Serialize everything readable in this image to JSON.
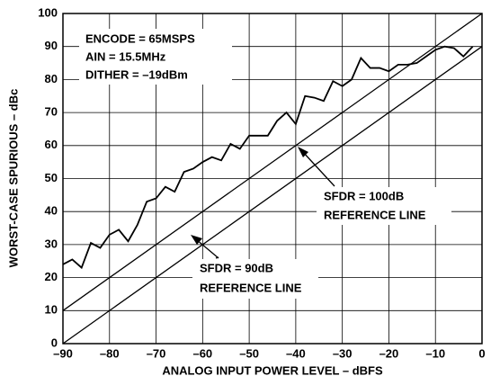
{
  "chart_data": {
    "type": "line",
    "xlabel": "ANALOG INPUT POWER LEVEL – dBFS",
    "ylabel": "WORST-CASE SPURIOUS – dBc",
    "xlim": [
      -90,
      0
    ],
    "ylim": [
      0,
      100
    ],
    "xticks": [
      {
        "value": -90,
        "label": "–90"
      },
      {
        "value": -80,
        "label": "–80"
      },
      {
        "value": -70,
        "label": "–70"
      },
      {
        "value": -60,
        "label": "–60"
      },
      {
        "value": -50,
        "label": "–50"
      },
      {
        "value": -40,
        "label": "–40"
      },
      {
        "value": -30,
        "label": "–30"
      },
      {
        "value": -20,
        "label": "–20"
      },
      {
        "value": -10,
        "label": "–10"
      },
      0
    ],
    "yticks": [
      0,
      10,
      20,
      30,
      40,
      50,
      60,
      70,
      80,
      90,
      100
    ],
    "grid": true,
    "series": [
      {
        "color": "#000000",
        "x": [
          -90,
          -88,
          -86,
          -84,
          -82,
          -80,
          -78,
          -76,
          -74,
          -72,
          -70,
          -68,
          -66,
          -64,
          -62,
          -60,
          -58,
          -56,
          -54,
          -52,
          -50,
          -48,
          -46,
          -44,
          -42,
          -40,
          -38,
          -36,
          -34,
          -32,
          -30,
          -28,
          -26,
          -24,
          -22,
          -20,
          -18,
          -16,
          -14,
          -12,
          -10,
          -8,
          -6,
          -4,
          -2
        ],
        "values": [
          24,
          25.5,
          23,
          30.5,
          29,
          33,
          34.5,
          31,
          36,
          43,
          44,
          47.5,
          46,
          52,
          53,
          55,
          56.5,
          55.5,
          60.5,
          59,
          63,
          63,
          63,
          67.5,
          70,
          66.5,
          75,
          74.5,
          73.5,
          79.5,
          78,
          80,
          86.5,
          83.5,
          83.5,
          82.5,
          84.5,
          84.5,
          85,
          87,
          89,
          90,
          89.5,
          87,
          90
        ]
      },
      {
        "color": "#000000",
        "x": [
          -90,
          0
        ],
        "values": [
          10,
          100
        ]
      },
      {
        "color": "#000000",
        "x": [
          -90,
          0
        ],
        "values": [
          0,
          90
        ]
      }
    ],
    "annotations": [
      "ENCODE = 65MSPS",
      "AIN = 15.5MHz",
      "DITHER = –19dBm",
      "SFDR = 100dB",
      "REFERENCE LINE",
      "SFDR = 90dB",
      "REFERENCE LINE"
    ]
  }
}
